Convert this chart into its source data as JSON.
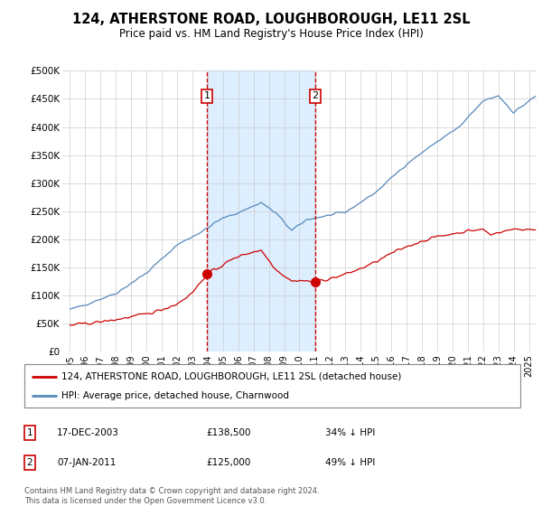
{
  "title": "124, ATHERSTONE ROAD, LOUGHBOROUGH, LE11 2SL",
  "subtitle": "Price paid vs. HM Land Registry's House Price Index (HPI)",
  "legend_line1": "124, ATHERSTONE ROAD, LOUGHBOROUGH, LE11 2SL (detached house)",
  "legend_line2": "HPI: Average price, detached house, Charnwood",
  "hpi_color": "#5588bb",
  "price_color": "#cc0000",
  "marker_color": "#cc0000",
  "vline_color": "#cc0000",
  "shade_color": "#ddeeff",
  "transaction1_x": 2003.96,
  "transaction1_price": 138500,
  "transaction2_x": 2011.03,
  "transaction2_price": 125000,
  "footnote1": "Contains HM Land Registry data © Crown copyright and database right 2024.",
  "footnote2": "This data is licensed under the Open Government Licence v3.0.",
  "ylim": [
    0,
    500000
  ],
  "yticks": [
    0,
    50000,
    100000,
    150000,
    200000,
    250000,
    300000,
    350000,
    400000,
    450000,
    500000
  ],
  "ytick_labels": [
    "£0",
    "£50K",
    "£100K",
    "£150K",
    "£200K",
    "£250K",
    "£300K",
    "£350K",
    "£400K",
    "£450K",
    "£500K"
  ],
  "xlim_left": 1994.5,
  "xlim_right": 2025.5
}
